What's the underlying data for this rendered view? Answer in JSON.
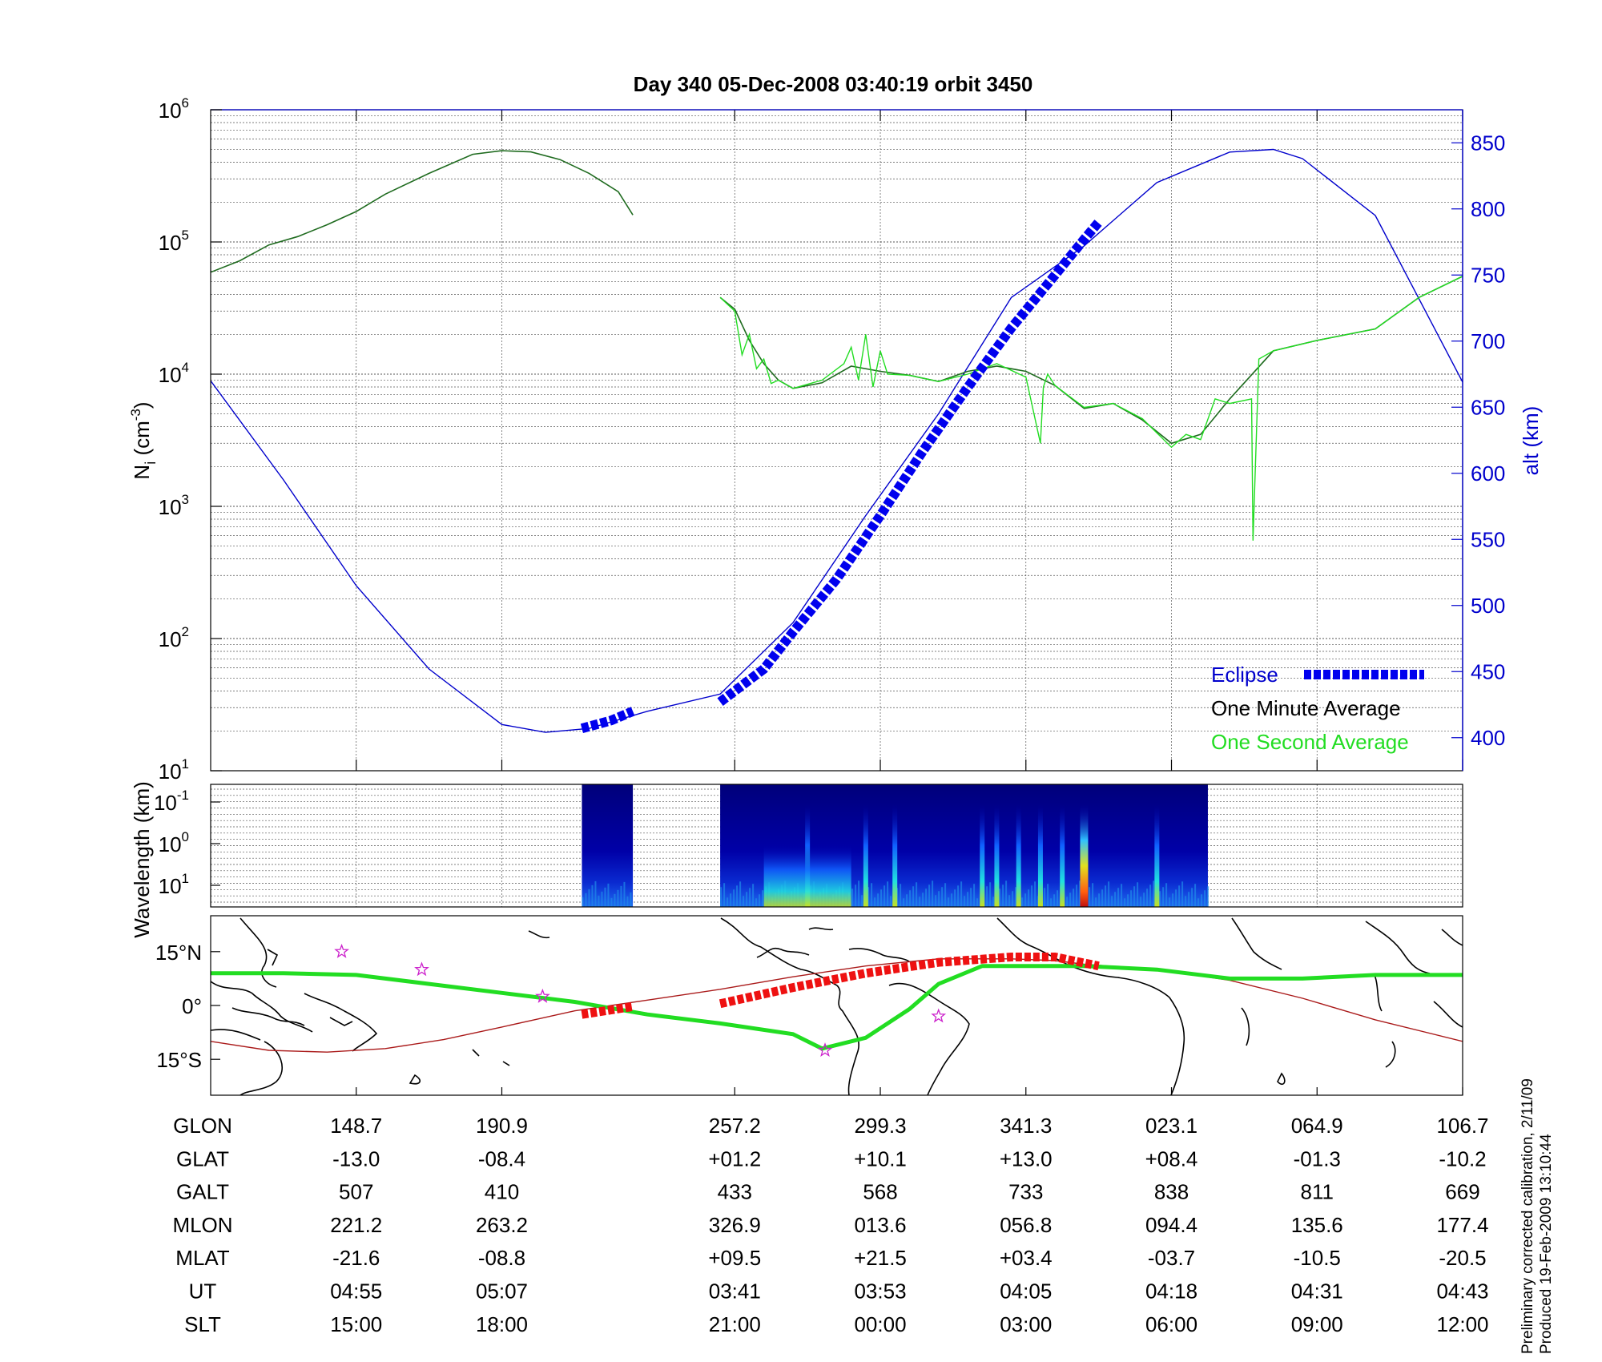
{
  "title": "Day 340  05-Dec-2008 03:40:19   orbit 3450",
  "footnote": {
    "line1": "Preliminary corrected calibration, 2/11/09",
    "line2": "Produced 19-Feb-2009 13:10:44"
  },
  "colors": {
    "axis": "#000000",
    "alt_axis": "#0000cc",
    "alt_line": "#0000cc",
    "eclipse": "#0000ee",
    "minute_avg": "#1f6b1f",
    "second_avg": "#22dd22",
    "ground_track": "#22dd22",
    "mag_equator": "#aa1a1a",
    "track_eclipse": "#ee1111",
    "stars": "#cc22cc"
  },
  "chart_data": [
    {
      "type": "line",
      "panel": "ion density and altitude",
      "ylabel": "N_i (cm^-3)",
      "ylabel_main": "N",
      "ylabel_sub": "i",
      "ylabel_unit": "(cm",
      "ylabel_sup": "-3",
      "ylabel_close": ")",
      "y_scale": "log",
      "ylim": [
        10,
        1000000
      ],
      "y_ticks": [
        {
          "value": 10,
          "base": "10",
          "exp": "1"
        },
        {
          "value": 100,
          "base": "10",
          "exp": "2"
        },
        {
          "value": 1000,
          "base": "10",
          "exp": "3"
        },
        {
          "value": 10000,
          "base": "10",
          "exp": "4"
        },
        {
          "value": 100000,
          "base": "10",
          "exp": "5"
        },
        {
          "value": 1000000,
          "base": "10",
          "exp": "6"
        }
      ],
      "y2label": "alt (km)",
      "y2lim": [
        375,
        875
      ],
      "y2_ticks": [
        "400",
        "450",
        "500",
        "550",
        "600",
        "650",
        "700",
        "750",
        "800",
        "850"
      ],
      "xlim": [
        0,
        8.6
      ],
      "grid": true,
      "legend_position": "bottom-right",
      "legend": [
        "Eclipse",
        "One Minute Average",
        "One Second Average"
      ],
      "series": [
        {
          "name": "One Minute Average",
          "segments": [
            {
              "x": [
                0.0,
                0.2,
                0.4,
                0.6,
                0.8,
                1.0,
                1.2,
                1.5,
                1.8,
                2.0,
                2.2,
                2.4,
                2.6,
                2.8,
                2.9
              ],
              "y": [
                59000,
                72000,
                95000,
                110000,
                135000,
                170000,
                230000,
                330000,
                460000,
                490000,
                480000,
                420000,
                330000,
                240000,
                160000
              ]
            },
            {
              "x": [
                3.5,
                3.6,
                3.7,
                3.8,
                3.9,
                4.0,
                4.2,
                4.4,
                4.6,
                4.8,
                5.0,
                5.2,
                5.4,
                5.6,
                5.8,
                6.0,
                6.2,
                6.4,
                6.6,
                6.8,
                7.0,
                7.3,
                7.6,
                8.0,
                8.3,
                8.6
              ],
              "y": [
                38000,
                31000,
                18000,
                12000,
                9000,
                7800,
                8600,
                11500,
                10500,
                9800,
                8800,
                10500,
                11500,
                10500,
                8200,
                5500,
                6000,
                4500,
                3000,
                3500,
                6500,
                15000,
                18000,
                22000,
                38000,
                55000
              ]
            }
          ]
        },
        {
          "name": "One Second Average",
          "segments": [
            {
              "x": [
                3.5,
                3.6,
                3.65,
                3.7,
                3.75,
                3.8,
                3.85,
                3.9,
                4.0,
                4.2,
                4.35,
                4.4,
                4.45,
                4.5,
                4.55,
                4.6,
                4.65,
                4.8,
                5.0,
                5.2,
                5.4,
                5.6,
                5.7,
                5.72,
                5.75,
                5.8,
                6.0,
                6.2,
                6.4,
                6.6,
                6.7,
                6.8,
                6.9,
                7.0,
                7.15,
                7.16,
                7.2,
                7.3,
                7.6,
                8.0,
                8.3,
                8.6
              ],
              "y": [
                38000,
                30000,
                14000,
                20000,
                11000,
                13000,
                8500,
                9000,
                7800,
                9000,
                12000,
                16000,
                9000,
                20000,
                8000,
                15000,
                10000,
                9800,
                8800,
                10000,
                12000,
                9500,
                3000,
                8000,
                10000,
                8200,
                5600,
                6000,
                4600,
                2800,
                3500,
                3200,
                6500,
                6000,
                6500,
                550,
                13000,
                15000,
                18000,
                22000,
                38000,
                55000
              ]
            }
          ]
        },
        {
          "name": "alt (km)",
          "axis": "right",
          "x": [
            0.0,
            0.5,
            1.0,
            1.5,
            2.0,
            2.3,
            2.6,
            3.0,
            3.5,
            4.0,
            4.5,
            5.0,
            5.5,
            6.0,
            6.5,
            7.0,
            7.3,
            7.5,
            8.0,
            8.6
          ],
          "y": [
            670,
            595,
            515,
            452,
            410,
            404,
            407,
            420,
            433,
            487,
            568,
            645,
            733,
            772,
            820,
            843,
            845,
            838,
            795,
            669
          ]
        },
        {
          "name": "Eclipse",
          "axis": "right",
          "segments": [
            {
              "x": [
                2.55,
                2.75,
                2.9
              ],
              "y": [
                407,
                413,
                420
              ]
            },
            {
              "x": [
                3.5,
                3.8,
                4.0,
                4.3,
                4.6,
                4.9,
                5.2,
                5.5,
                5.8,
                6.0,
                6.1
              ],
              "y": [
                427,
                452,
                480,
                520,
                568,
                618,
                665,
                710,
                750,
                777,
                790
              ]
            }
          ]
        }
      ]
    },
    {
      "type": "heatmap",
      "panel": "wavelength spectrogram",
      "ylabel": "Wavelength (km)",
      "y_ticks": [
        {
          "base": "10",
          "exp": "-1"
        },
        {
          "base": "10",
          "exp": "0"
        },
        {
          "base": "10",
          "exp": "1"
        }
      ],
      "data_spans": [
        [
          2.55,
          2.9
        ],
        [
          3.5,
          6.85
        ]
      ],
      "bright_columns_x": [
        4.1,
        4.5,
        4.7,
        5.3,
        5.4,
        5.55,
        5.7,
        5.85,
        6.0,
        6.5
      ]
    },
    {
      "type": "line",
      "panel": "ground track map",
      "y_ticks": [
        {
          "value": 15,
          "label": "15°N"
        },
        {
          "value": 0,
          "label": "0°"
        },
        {
          "value": -15,
          "label": "15°S"
        }
      ],
      "ylim": [
        -25,
        25
      ],
      "series": [
        {
          "name": "ground track",
          "x": [
            0.0,
            0.5,
            1.0,
            1.5,
            2.0,
            2.5,
            3.0,
            3.5,
            4.0,
            4.2,
            4.5,
            4.8,
            5.0,
            5.3,
            5.5,
            5.8,
            6.0,
            6.5,
            7.0,
            7.5,
            8.0,
            8.6
          ],
          "y": [
            9.0,
            9.0,
            8.5,
            6.0,
            3.5,
            1.0,
            -2.5,
            -5.0,
            -8.0,
            -12.0,
            -9.0,
            -1.0,
            6.0,
            11.0,
            11.0,
            11.0,
            11.0,
            10.0,
            7.5,
            7.5,
            8.5,
            8.5
          ]
        },
        {
          "name": "magnetic equator",
          "x": [
            0.0,
            0.4,
            0.8,
            1.2,
            1.6,
            2.0,
            2.5,
            3.0,
            3.5,
            4.0,
            4.5,
            5.0,
            5.5,
            5.8,
            6.0,
            6.5,
            7.0,
            7.5,
            8.0,
            8.6
          ],
          "y": [
            -10.0,
            -12.5,
            -13.0,
            -12.0,
            -9.5,
            -6.0,
            -1.5,
            1.5,
            4.5,
            8.0,
            11.0,
            13.0,
            13.0,
            12.5,
            11.5,
            10.0,
            7.0,
            2.0,
            -4.0,
            -10.0
          ]
        },
        {
          "name": "eclipse track",
          "segments": [
            {
              "x": [
                2.55,
                2.9
              ],
              "y": [
                -2.5,
                -0.3
              ]
            },
            {
              "x": [
                3.5,
                4.0,
                4.5,
                5.0,
                5.5,
                5.8,
                6.1
              ],
              "y": [
                0.5,
                5.0,
                9.0,
                12.0,
                13.5,
                13.5,
                11.0
              ]
            }
          ]
        }
      ],
      "stars": [
        {
          "x": 0.9,
          "y": 15.0
        },
        {
          "x": 1.45,
          "y": 10.0
        },
        {
          "x": 2.28,
          "y": 2.5
        },
        {
          "x": 4.22,
          "y": -12.5
        },
        {
          "x": 5.0,
          "y": -3.0
        }
      ]
    }
  ],
  "table": {
    "x_ticks": [
      1.0,
      2.0,
      3.6,
      4.6,
      5.6,
      6.6,
      7.6,
      8.6
    ],
    "rows": [
      {
        "label": "GLON",
        "values": [
          "148.7",
          "190.9",
          "257.2",
          "299.3",
          "341.3",
          "023.1",
          "064.9",
          "106.7"
        ]
      },
      {
        "label": "GLAT",
        "values": [
          "-13.0",
          "-08.4",
          "+01.2",
          "+10.1",
          "+13.0",
          "+08.4",
          "-01.3",
          "-10.2"
        ]
      },
      {
        "label": "GALT",
        "values": [
          "507",
          "410",
          "433",
          "568",
          "733",
          "838",
          "811",
          "669"
        ]
      },
      {
        "label": "MLON",
        "values": [
          "221.2",
          "263.2",
          "326.9",
          "013.6",
          "056.8",
          "094.4",
          "135.6",
          "177.4"
        ]
      },
      {
        "label": "MLAT",
        "values": [
          "-21.6",
          "-08.8",
          "+09.5",
          "+21.5",
          "+03.4",
          "-03.7",
          "-10.5",
          "-20.5"
        ]
      },
      {
        "label": "UT",
        "values": [
          "04:55",
          "05:07",
          "03:41",
          "03:53",
          "04:05",
          "04:18",
          "04:31",
          "04:43"
        ]
      },
      {
        "label": "SLT",
        "values": [
          "15:00",
          "18:00",
          "21:00",
          "00:00",
          "03:00",
          "06:00",
          "09:00",
          "12:00"
        ]
      }
    ]
  }
}
